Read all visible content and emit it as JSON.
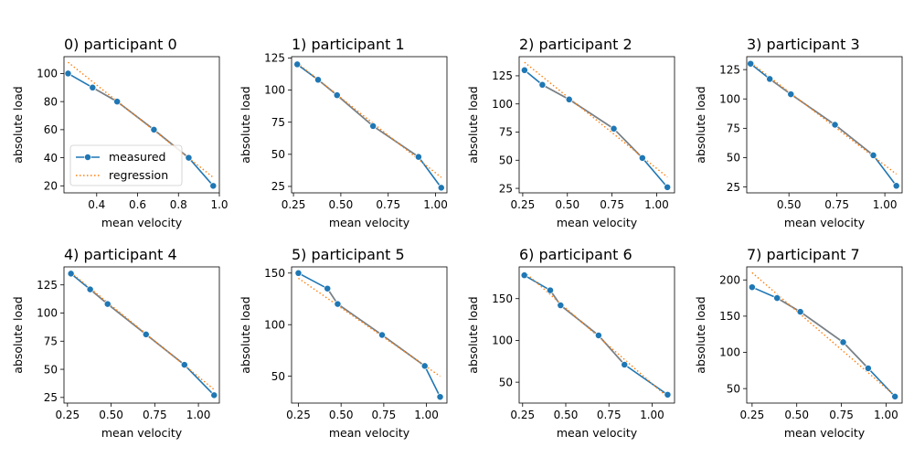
{
  "colors": {
    "measured": "#1f77b4",
    "regression": "#ff7f0e",
    "grey_line": "#808080"
  },
  "legend": {
    "placement": "lower-left",
    "panel": 0,
    "entries": [
      "measured",
      "regression"
    ]
  },
  "chart_data": [
    {
      "type": "line",
      "title": "0) participant 0",
      "xlabel": "mean velocity",
      "ylabel": "absolute load",
      "xlim": [
        0.24,
        1.0
      ],
      "ylim": [
        15,
        112
      ],
      "xticks": [
        0.4,
        0.6,
        0.8,
        1.0
      ],
      "xtick_labels": [
        "0.4",
        "0.6",
        "0.8",
        "1.0"
      ],
      "yticks": [
        20,
        40,
        60,
        80,
        100
      ],
      "ytick_labels": [
        "20",
        "40",
        "60",
        "80",
        "100"
      ],
      "series": [
        {
          "name": "measured",
          "style": "solid-marker",
          "x": [
            0.26,
            0.38,
            0.5,
            0.68,
            0.85,
            0.97
          ],
          "y": [
            100,
            90,
            80,
            60,
            40,
            20
          ]
        },
        {
          "name": "regression",
          "style": "dotted",
          "x": [
            0.26,
            0.97
          ],
          "y": [
            108,
            26
          ]
        }
      ]
    },
    {
      "type": "line",
      "title": "1) participant 1",
      "xlabel": "mean velocity",
      "ylabel": "absolute load",
      "xlim": [
        0.24,
        1.06
      ],
      "ylim": [
        20,
        126
      ],
      "xticks": [
        0.25,
        0.5,
        0.75,
        1.0
      ],
      "xtick_labels": [
        "0.25",
        "0.50",
        "0.75",
        "1.00"
      ],
      "yticks": [
        25,
        50,
        75,
        100,
        125
      ],
      "ytick_labels": [
        "25",
        "50",
        "75",
        "100",
        "125"
      ],
      "series": [
        {
          "name": "measured",
          "style": "solid-marker",
          "x": [
            0.27,
            0.38,
            0.48,
            0.67,
            0.91,
            1.03
          ],
          "y": [
            120,
            108,
            96,
            72,
            48,
            24
          ]
        },
        {
          "name": "regression",
          "style": "dotted",
          "x": [
            0.27,
            1.03
          ],
          "y": [
            121,
            32
          ]
        }
      ]
    },
    {
      "type": "line",
      "title": "2) participant 2",
      "xlabel": "mean velocity",
      "ylabel": "absolute load",
      "xlim": [
        0.23,
        1.1
      ],
      "ylim": [
        21,
        142
      ],
      "xticks": [
        0.25,
        0.5,
        0.75,
        1.0
      ],
      "xtick_labels": [
        "0.25",
        "0.50",
        "0.75",
        "1.00"
      ],
      "yticks": [
        25,
        50,
        75,
        100,
        125
      ],
      "ytick_labels": [
        "25",
        "50",
        "75",
        "100",
        "125"
      ],
      "series": [
        {
          "name": "measured",
          "style": "solid-marker",
          "x": [
            0.26,
            0.36,
            0.51,
            0.76,
            0.92,
            1.06
          ],
          "y": [
            130,
            117,
            104,
            78,
            52,
            26
          ]
        },
        {
          "name": "regression",
          "style": "dotted",
          "x": [
            0.26,
            1.06
          ],
          "y": [
            137,
            35
          ]
        }
      ]
    },
    {
      "type": "line",
      "title": "3) participant 3",
      "xlabel": "mean velocity",
      "ylabel": "absolute load",
      "xlim": [
        0.28,
        1.09
      ],
      "ylim": [
        20,
        136
      ],
      "xticks": [
        0.5,
        0.75,
        1.0
      ],
      "xtick_labels": [
        "0.50",
        "0.75",
        "1.00"
      ],
      "yticks": [
        25,
        50,
        75,
        100,
        125
      ],
      "ytick_labels": [
        "25",
        "50",
        "75",
        "100",
        "125"
      ],
      "series": [
        {
          "name": "measured",
          "style": "solid-marker",
          "x": [
            0.3,
            0.4,
            0.51,
            0.74,
            0.94,
            1.06
          ],
          "y": [
            130,
            117,
            104,
            78,
            52,
            26
          ]
        },
        {
          "name": "regression",
          "style": "dotted",
          "x": [
            0.3,
            1.06
          ],
          "y": [
            131,
            36
          ]
        }
      ]
    },
    {
      "type": "line",
      "title": "4) participant 4",
      "xlabel": "mean velocity",
      "ylabel": "absolute load",
      "xlim": [
        0.23,
        1.12
      ],
      "ylim": [
        20,
        141
      ],
      "xticks": [
        0.25,
        0.5,
        0.75,
        1.0
      ],
      "xtick_labels": [
        "0.25",
        "0.50",
        "0.75",
        "1.00"
      ],
      "yticks": [
        25,
        50,
        75,
        100,
        125
      ],
      "ytick_labels": [
        "25",
        "50",
        "75",
        "100",
        "125"
      ],
      "series": [
        {
          "name": "measured",
          "style": "solid-marker",
          "x": [
            0.27,
            0.38,
            0.48,
            0.7,
            0.92,
            1.09
          ],
          "y": [
            135,
            121,
            108,
            81,
            54,
            27
          ]
        },
        {
          "name": "regression",
          "style": "dotted",
          "x": [
            0.27,
            1.09
          ],
          "y": [
            136,
            32
          ]
        }
      ]
    },
    {
      "type": "line",
      "title": "5) participant 5",
      "xlabel": "mean velocity",
      "ylabel": "absolute load",
      "xlim": [
        0.21,
        1.12
      ],
      "ylim": [
        24,
        156
      ],
      "xticks": [
        0.25,
        0.5,
        0.75,
        1.0
      ],
      "xtick_labels": [
        "0.25",
        "0.50",
        "0.75",
        "1.00"
      ],
      "yticks": [
        50,
        100,
        150
      ],
      "ytick_labels": [
        "50",
        "100",
        "150"
      ],
      "series": [
        {
          "name": "measured",
          "style": "solid-marker",
          "x": [
            0.25,
            0.42,
            0.48,
            0.74,
            0.99,
            1.08
          ],
          "y": [
            150,
            135,
            120,
            90,
            60,
            30
          ]
        },
        {
          "name": "regression",
          "style": "dotted",
          "x": [
            0.25,
            1.08
          ],
          "y": [
            145,
            50
          ]
        }
      ]
    },
    {
      "type": "line",
      "title": "6) participant 6",
      "xlabel": "mean velocity",
      "ylabel": "absolute load",
      "xlim": [
        0.23,
        1.13
      ],
      "ylim": [
        25,
        188
      ],
      "xticks": [
        0.25,
        0.5,
        0.75,
        1.0
      ],
      "xtick_labels": [
        "0.25",
        "0.50",
        "0.75",
        "1.00"
      ],
      "yticks": [
        50,
        100,
        150
      ],
      "ytick_labels": [
        "50",
        "100",
        "150"
      ],
      "series": [
        {
          "name": "measured",
          "style": "solid-marker",
          "x": [
            0.26,
            0.41,
            0.47,
            0.69,
            0.84,
            1.09
          ],
          "y": [
            178,
            160,
            142,
            106,
            71,
            35
          ]
        },
        {
          "name": "regression",
          "style": "dotted",
          "x": [
            0.26,
            1.09
          ],
          "y": [
            182,
            32
          ]
        }
      ]
    },
    {
      "type": "line",
      "title": "7) participant 7",
      "xlabel": "mean velocity",
      "ylabel": "absolute load",
      "xlim": [
        0.22,
        1.09
      ],
      "ylim": [
        30,
        218
      ],
      "xticks": [
        0.25,
        0.5,
        0.75,
        1.0
      ],
      "xtick_labels": [
        "0.25",
        "0.50",
        "0.75",
        "1.00"
      ],
      "yticks": [
        50,
        100,
        150,
        200
      ],
      "ytick_labels": [
        "50",
        "100",
        "150",
        "200"
      ],
      "series": [
        {
          "name": "measured",
          "style": "solid-marker",
          "x": [
            0.25,
            0.39,
            0.52,
            0.76,
            0.9,
            1.05
          ],
          "y": [
            190,
            175,
            156,
            114,
            78,
            39
          ]
        },
        {
          "name": "regression",
          "style": "dotted",
          "x": [
            0.25,
            1.05
          ],
          "y": [
            210,
            40
          ]
        }
      ]
    }
  ]
}
